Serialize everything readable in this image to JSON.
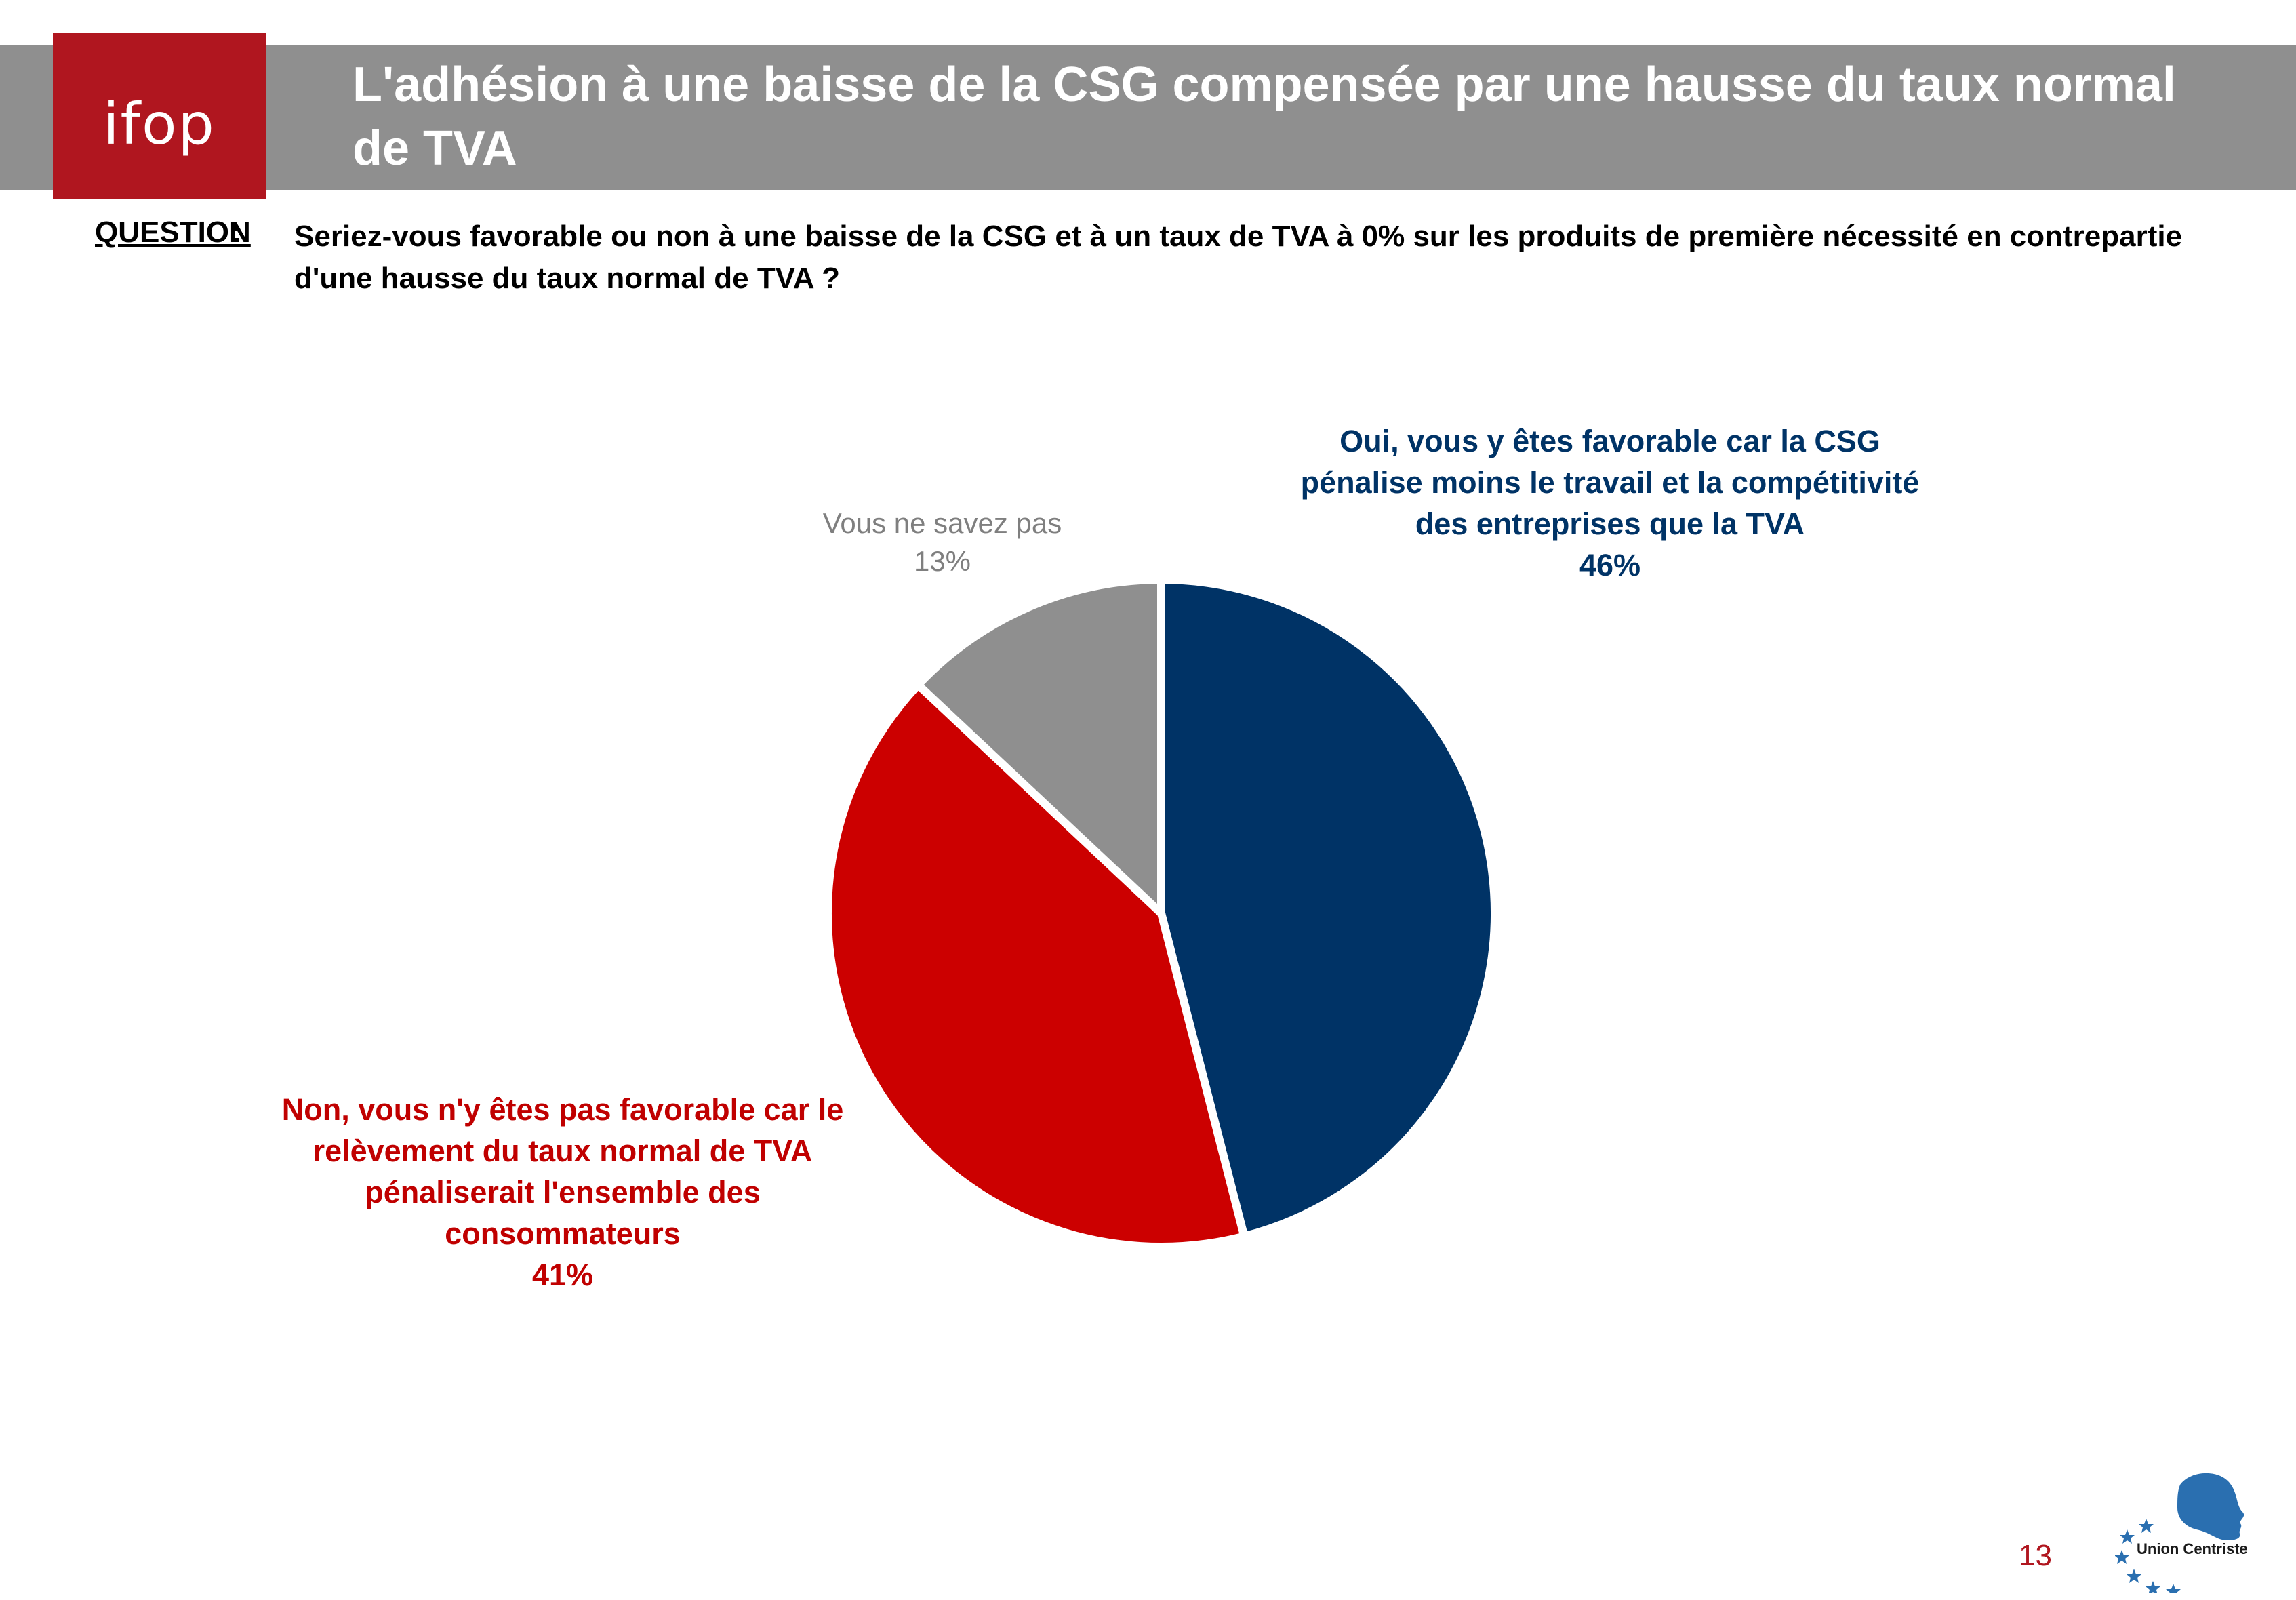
{
  "header": {
    "logo_text": "ifop",
    "title": "L'adhésion à une baisse de la CSG compensée par une hausse du taux normal de TVA"
  },
  "question": {
    "label": "QUESTION",
    "colon": ":",
    "text": "Seriez-vous favorable ou non à une baisse de la CSG et à un taux de TVA à 0% sur les produits de première nécessité en contrepartie d'une hausse du taux normal de TVA ?"
  },
  "chart_data": {
    "type": "pie",
    "title": "",
    "slices": [
      {
        "label": "Oui, vous y êtes favorable car la CSG pénalise moins le travail et la compétitivité des entreprises que la TVA",
        "value": 46,
        "value_label": "46%",
        "color": "#003366"
      },
      {
        "label": "Non, vous n'y êtes pas favorable car le relèvement du taux normal de TVA pénaliserait l'ensemble des consommateurs",
        "value": 41,
        "value_label": "41%",
        "color": "#cc0000"
      },
      {
        "label": "Vous ne savez pas",
        "value": 13,
        "value_label": "13%",
        "color": "#8f8f8f"
      }
    ]
  },
  "footer": {
    "page_number": "13",
    "partner_logo_text": "Union Centriste",
    "partner_logo_icon": "profile-with-stars-icon"
  }
}
